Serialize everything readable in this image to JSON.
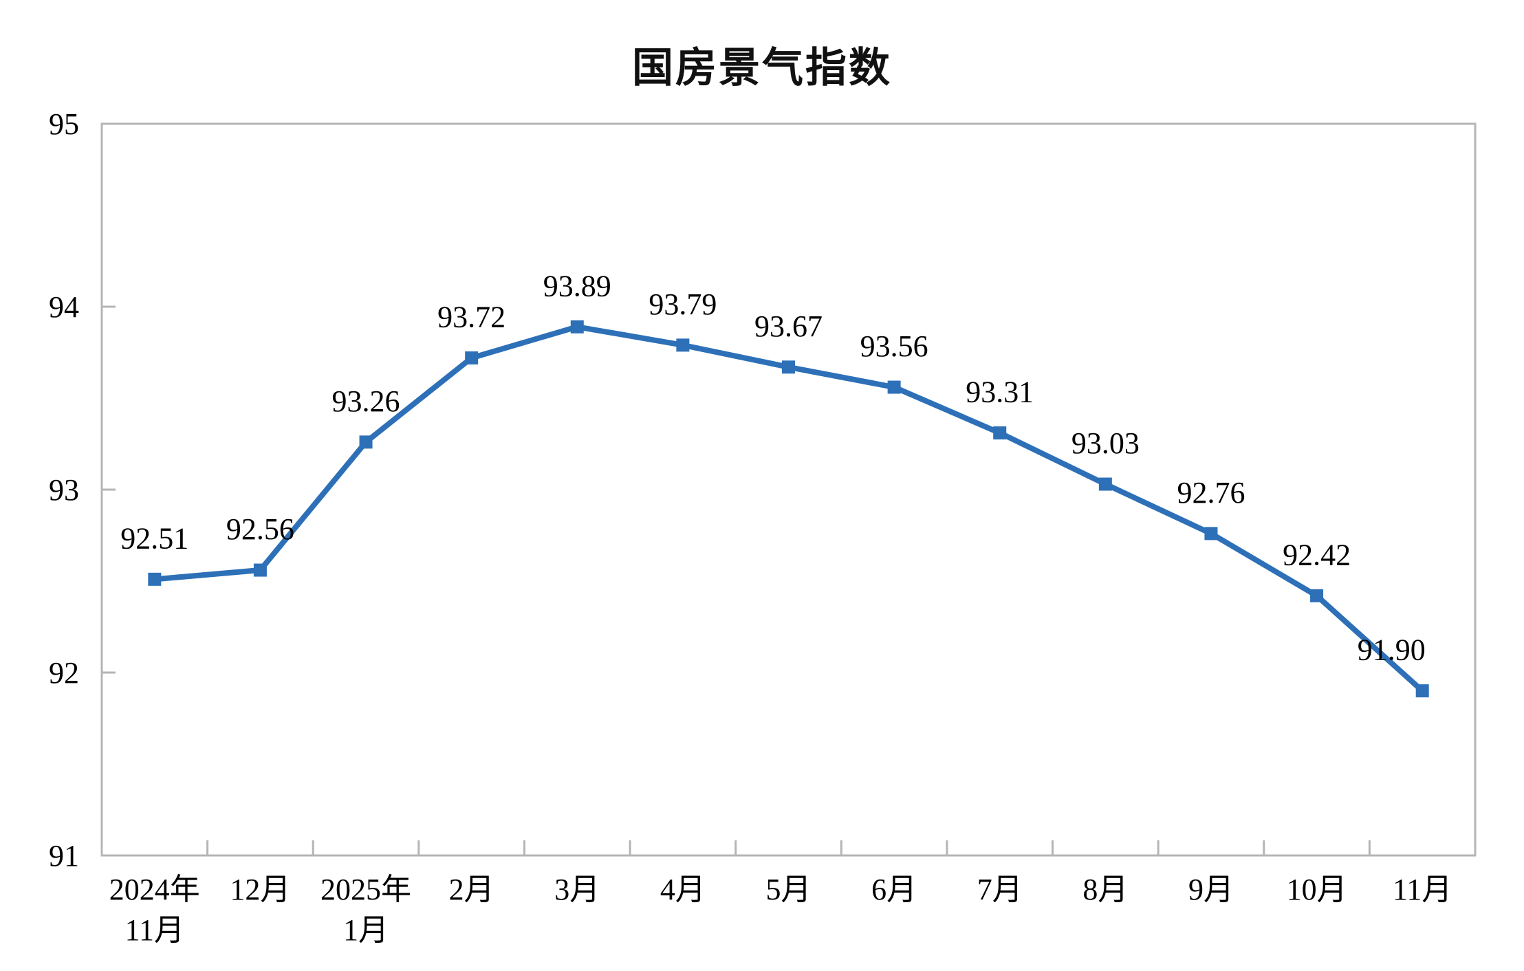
{
  "chart": {
    "title": "国房景气指数",
    "chart_data": {
      "type": "line",
      "title": "国房景气指数",
      "categories": [
        "2024年\n11月",
        "12月",
        "2025年\n1月",
        "2月",
        "3月",
        "4月",
        "5月",
        "6月",
        "7月",
        "8月",
        "9月",
        "10月",
        "11月"
      ],
      "series": [
        {
          "name": "国房景气指数",
          "values": [
            92.51,
            92.56,
            93.26,
            93.72,
            93.89,
            93.79,
            93.67,
            93.56,
            93.31,
            93.03,
            92.76,
            92.42,
            91.9
          ]
        }
      ],
      "data_labels": [
        "92.51",
        "92.56",
        "93.26",
        "93.72",
        "93.89",
        "93.79",
        "93.67",
        "93.56",
        "93.31",
        "93.03",
        "92.76",
        "92.42",
        "91.90"
      ],
      "label_dx": [
        0,
        0,
        0,
        0,
        0,
        0,
        0,
        0,
        0,
        0,
        0,
        0,
        -45
      ],
      "xlabel": "",
      "ylabel": "",
      "ylim": [
        91,
        95
      ],
      "yticks": [
        91,
        92,
        93,
        94,
        95
      ],
      "grid": false,
      "legend": "none",
      "marker": "square",
      "line_color": "#2D70B8",
      "axis_color": "#B5B5B5",
      "text_color": "#000000",
      "background": "#FFFFFF"
    }
  }
}
